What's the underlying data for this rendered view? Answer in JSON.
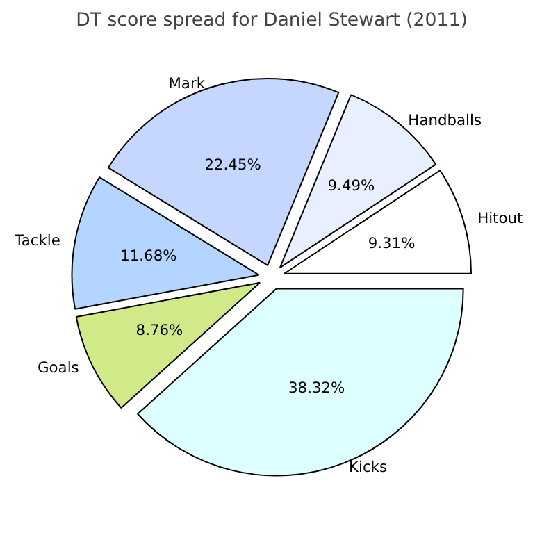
{
  "chart_data": {
    "type": "pie",
    "title": "DT score spread for Daniel Stewart (2011)",
    "categories": [
      "Hitout",
      "Handballs",
      "Mark",
      "Tackle",
      "Goals",
      "Kicks"
    ],
    "values": [
      9.31,
      9.49,
      22.45,
      11.68,
      8.76,
      38.32
    ],
    "colors": [
      "#ffffff",
      "#e8efff",
      "#c5d7ff",
      "#b3d5ff",
      "#d0ea8a",
      "#ddffff"
    ],
    "value_labels": [
      "9.31%",
      "9.49%",
      "22.45%",
      "11.68%",
      "8.76%",
      "38.32%"
    ]
  }
}
